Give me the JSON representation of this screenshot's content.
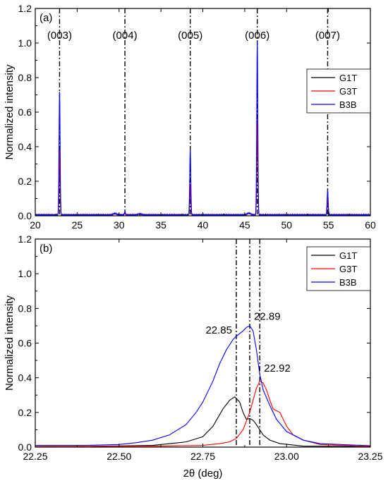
{
  "chart_data": [
    {
      "type": "line",
      "panel_label": "(a)",
      "xlabel": "",
      "ylabel": "Normalized intensity",
      "xlim": [
        20,
        60
      ],
      "ylim": [
        0,
        1.2
      ],
      "x_ticks": [
        20,
        25,
        30,
        35,
        40,
        45,
        50,
        55,
        60
      ],
      "y_ticks": [
        0.0,
        0.2,
        0.4,
        0.6,
        0.8,
        1.0,
        1.2
      ],
      "x_tick_labels": [
        "20",
        "25",
        "30",
        "35",
        "40",
        "45",
        "50",
        "55",
        "60"
      ],
      "y_tick_labels": [
        "0.0",
        "0.2",
        "0.4",
        "0.6",
        "0.8",
        "1.0",
        "1.2"
      ],
      "legend_position": "right",
      "reference_lines": [
        {
          "x": 22.9,
          "label": "(003)"
        },
        {
          "x": 30.7,
          "label": "(004)"
        },
        {
          "x": 38.5,
          "label": "(005)"
        },
        {
          "x": 46.5,
          "label": "(006)"
        },
        {
          "x": 54.9,
          "label": "(007)"
        }
      ],
      "series": [
        {
          "name": "G1T",
          "color": "#000000",
          "peaks": [
            [
              22.9,
              0.3
            ],
            [
              30.7,
              0.01
            ],
            [
              38.5,
              0.15
            ],
            [
              46.5,
              0.52
            ],
            [
              54.9,
              0.08
            ]
          ]
        },
        {
          "name": "G3T",
          "color": "#ff0000",
          "peaks": [
            [
              22.9,
              0.38
            ],
            [
              30.7,
              0.01
            ],
            [
              38.5,
              0.18
            ],
            [
              46.5,
              0.55
            ],
            [
              54.9,
              0.1
            ]
          ]
        },
        {
          "name": "B3B",
          "color": "#0000ff",
          "peaks": [
            [
              22.9,
              0.71
            ],
            [
              30.7,
              0.02
            ],
            [
              38.5,
              0.38
            ],
            [
              46.5,
              1.0
            ],
            [
              54.9,
              0.14
            ]
          ]
        }
      ]
    },
    {
      "type": "line",
      "panel_label": "(b)",
      "xlabel": "2θ (deg)",
      "ylabel": "Normalized intensity",
      "xlim": [
        22.25,
        23.25
      ],
      "ylim": [
        0,
        1.2
      ],
      "x_ticks": [
        22.25,
        22.5,
        22.75,
        23.0,
        23.25
      ],
      "y_ticks": [
        0.0,
        0.2,
        0.4,
        0.6,
        0.8,
        1.0,
        1.2
      ],
      "x_tick_labels": [
        "22.25",
        "22.50",
        "22.75",
        "23.00",
        "23.25"
      ],
      "y_tick_labels": [
        "0.0",
        "0.2",
        "0.4",
        "0.6",
        "0.8",
        "1.0",
        "1.2"
      ],
      "legend_position": "top-right",
      "reference_lines": [
        {
          "x": 22.85,
          "label": "22.85"
        },
        {
          "x": 22.89,
          "label": "22.89"
        },
        {
          "x": 22.92,
          "label": "22.92"
        }
      ],
      "series": [
        {
          "name": "G1T",
          "color": "#000000",
          "x": [
            22.25,
            22.4,
            22.6,
            22.7,
            22.75,
            22.78,
            22.81,
            22.83,
            22.845,
            22.86,
            22.87,
            22.88,
            22.89,
            22.9,
            22.91,
            22.93,
            22.95,
            22.98,
            23.05,
            23.25
          ],
          "y": [
            0.003,
            0.004,
            0.01,
            0.03,
            0.06,
            0.12,
            0.22,
            0.27,
            0.29,
            0.26,
            0.2,
            0.16,
            0.165,
            0.155,
            0.13,
            0.07,
            0.04,
            0.02,
            0.006,
            0.003
          ]
        },
        {
          "name": "G3T",
          "color": "#ff0000",
          "x": [
            22.25,
            22.6,
            22.75,
            22.8,
            22.83,
            22.85,
            22.87,
            22.89,
            22.9,
            22.91,
            22.92,
            22.93,
            22.94,
            22.95,
            22.96,
            22.97,
            22.98,
            22.99,
            23.0,
            23.02,
            23.05,
            23.1,
            23.25
          ],
          "y": [
            0.003,
            0.006,
            0.01,
            0.02,
            0.03,
            0.05,
            0.1,
            0.2,
            0.27,
            0.34,
            0.38,
            0.37,
            0.33,
            0.27,
            0.22,
            0.21,
            0.2,
            0.16,
            0.12,
            0.07,
            0.04,
            0.015,
            0.004
          ]
        },
        {
          "name": "B3B",
          "color": "#0000ff",
          "x": [
            22.25,
            22.4,
            22.5,
            22.55,
            22.6,
            22.65,
            22.7,
            22.73,
            22.75,
            22.78,
            22.8,
            22.82,
            22.84,
            22.85,
            22.87,
            22.88,
            22.89,
            22.9,
            22.91,
            22.92,
            22.93,
            22.95,
            22.97,
            23.0,
            23.05,
            23.1,
            23.25
          ],
          "y": [
            0.01,
            0.01,
            0.015,
            0.025,
            0.04,
            0.07,
            0.13,
            0.2,
            0.26,
            0.38,
            0.48,
            0.56,
            0.62,
            0.64,
            0.67,
            0.69,
            0.7,
            0.67,
            0.56,
            0.42,
            0.33,
            0.24,
            0.16,
            0.09,
            0.04,
            0.02,
            0.008
          ]
        }
      ]
    }
  ]
}
